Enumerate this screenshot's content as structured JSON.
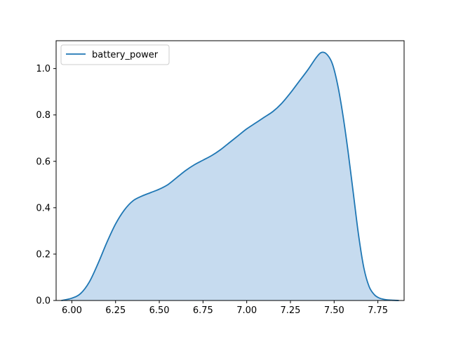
{
  "chart_data": {
    "type": "area",
    "title": "",
    "xlabel": "",
    "ylabel": "",
    "xlim": [
      5.91,
      7.9
    ],
    "ylim": [
      0,
      1.12
    ],
    "xticks": [
      6.0,
      6.25,
      6.5,
      6.75,
      7.0,
      7.25,
      7.5,
      7.75
    ],
    "xtick_labels": [
      "6.00",
      "6.25",
      "6.50",
      "6.75",
      "7.00",
      "7.25",
      "7.50",
      "7.75"
    ],
    "yticks": [
      0.0,
      0.2,
      0.4,
      0.6,
      0.8,
      1.0
    ],
    "ytick_labels": [
      "0.0",
      "0.2",
      "0.4",
      "0.6",
      "0.8",
      "1.0"
    ],
    "grid": false,
    "legend": {
      "placement": "top-left",
      "entries": [
        "battery_power"
      ]
    },
    "series": [
      {
        "name": "battery_power",
        "color": "#1f77b4",
        "fill_color": "#c6dbef",
        "x": [
          5.94,
          6.0,
          6.05,
          6.1,
          6.15,
          6.2,
          6.25,
          6.3,
          6.35,
          6.4,
          6.45,
          6.5,
          6.55,
          6.6,
          6.65,
          6.7,
          6.75,
          6.8,
          6.85,
          6.9,
          6.95,
          7.0,
          7.05,
          7.1,
          7.15,
          7.2,
          7.25,
          7.3,
          7.35,
          7.4,
          7.43,
          7.46,
          7.49,
          7.52,
          7.55,
          7.58,
          7.61,
          7.64,
          7.67,
          7.7,
          7.73,
          7.76,
          7.8,
          7.84,
          7.87
        ],
        "y": [
          0.0,
          0.01,
          0.03,
          0.08,
          0.16,
          0.25,
          0.33,
          0.39,
          0.43,
          0.45,
          0.465,
          0.48,
          0.5,
          0.53,
          0.56,
          0.585,
          0.605,
          0.625,
          0.65,
          0.68,
          0.71,
          0.74,
          0.765,
          0.79,
          0.815,
          0.85,
          0.895,
          0.945,
          0.995,
          1.05,
          1.07,
          1.06,
          1.02,
          0.93,
          0.8,
          0.64,
          0.46,
          0.28,
          0.14,
          0.06,
          0.025,
          0.01,
          0.003,
          0.001,
          0.0
        ]
      }
    ]
  }
}
